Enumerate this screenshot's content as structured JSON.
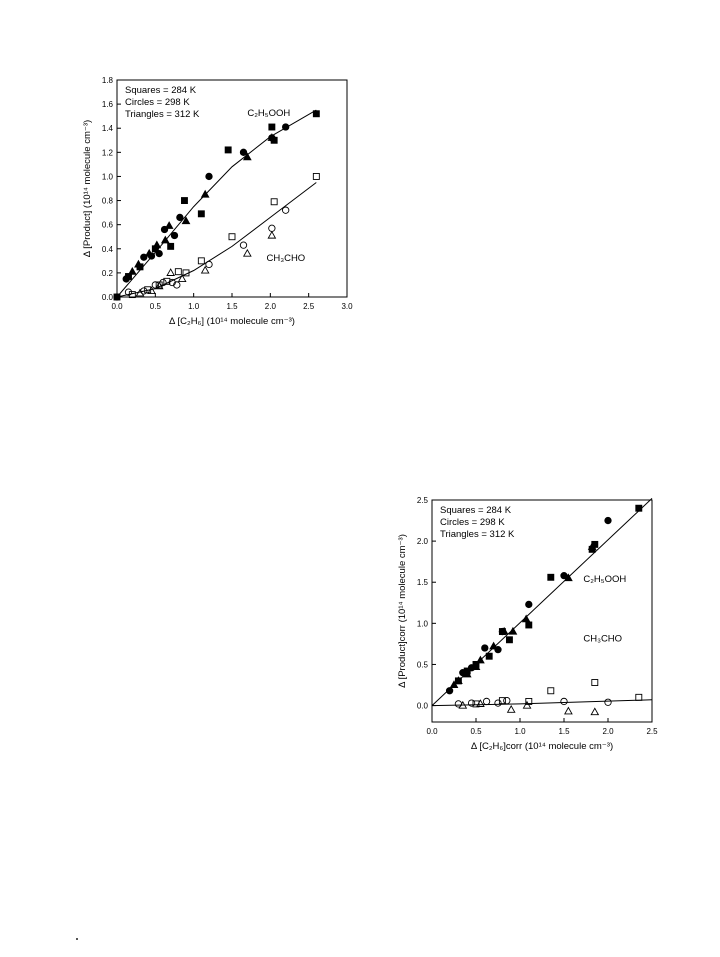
{
  "chart_data": [
    {
      "type": "scatter",
      "title": "",
      "xlabel": "Δ [C₂H₆] (10¹⁴ molecule cm⁻³)",
      "ylabel": "Δ [Product] (10¹⁴ molecule cm⁻³)",
      "xlim": [
        0,
        3.0
      ],
      "ylim": [
        0,
        1.8
      ],
      "x_ticks": [
        "0.0",
        "0.5",
        "1.0",
        "1.5",
        "2.0",
        "2.5",
        "3.0"
      ],
      "y_ticks": [
        "0.0",
        "0.2",
        "0.4",
        "0.6",
        "0.8",
        "1.0",
        "1.2",
        "1.4",
        "1.6",
        "1.8"
      ],
      "legend_lines": [
        "Squares = 284 K",
        "Circles = 298 K",
        "Triangles = 312 K"
      ],
      "legend_position": "top-left",
      "annotations": [
        {
          "text": "C₂H₅OOH",
          "x": 1.7,
          "y": 1.5
        },
        {
          "text": "CH₃CHO",
          "x": 1.95,
          "y": 0.3
        }
      ],
      "series": [
        {
          "marker": "square",
          "fill": "filled",
          "points": [
            [
              0,
              0
            ],
            [
              0.15,
              0.17
            ],
            [
              0.3,
              0.25
            ],
            [
              0.5,
              0.4
            ],
            [
              0.7,
              0.42
            ],
            [
              0.88,
              0.8
            ],
            [
              1.1,
              0.69
            ],
            [
              1.45,
              1.22
            ],
            [
              2.02,
              1.41
            ],
            [
              2.05,
              1.3
            ],
            [
              2.6,
              1.52
            ]
          ]
        },
        {
          "marker": "circle",
          "fill": "filled",
          "points": [
            [
              0,
              0
            ],
            [
              0.12,
              0.15
            ],
            [
              0.35,
              0.33
            ],
            [
              0.45,
              0.34
            ],
            [
              0.55,
              0.36
            ],
            [
              0.62,
              0.56
            ],
            [
              0.75,
              0.51
            ],
            [
              0.82,
              0.66
            ],
            [
              1.2,
              1.0
            ],
            [
              1.65,
              1.2
            ],
            [
              2.02,
              1.32
            ],
            [
              2.2,
              1.41
            ]
          ]
        },
        {
          "marker": "triangle",
          "fill": "filled",
          "points": [
            [
              0.2,
              0.21
            ],
            [
              0.28,
              0.27
            ],
            [
              0.42,
              0.36
            ],
            [
              0.52,
              0.43
            ],
            [
              0.63,
              0.47
            ],
            [
              0.68,
              0.59
            ],
            [
              0.9,
              0.63
            ],
            [
              1.15,
              0.85
            ],
            [
              1.7,
              1.16
            ],
            [
              2.02,
              1.32
            ]
          ]
        },
        {
          "marker": "square",
          "fill": "open",
          "points": [
            [
              0.2,
              0.02
            ],
            [
              0.4,
              0.06
            ],
            [
              0.55,
              0.1
            ],
            [
              0.65,
              0.13
            ],
            [
              0.8,
              0.21
            ],
            [
              0.9,
              0.2
            ],
            [
              1.1,
              0.3
            ],
            [
              1.5,
              0.5
            ],
            [
              2.05,
              0.79
            ],
            [
              2.6,
              1.0
            ]
          ]
        },
        {
          "marker": "circle",
          "fill": "open",
          "points": [
            [
              0.15,
              0.04
            ],
            [
              0.35,
              0.05
            ],
            [
              0.5,
              0.1
            ],
            [
              0.6,
              0.12
            ],
            [
              0.72,
              0.12
            ],
            [
              0.78,
              0.1
            ],
            [
              1.2,
              0.27
            ],
            [
              1.65,
              0.43
            ],
            [
              2.02,
              0.57
            ],
            [
              2.2,
              0.72
            ]
          ]
        },
        {
          "marker": "triangle",
          "fill": "open",
          "points": [
            [
              0.3,
              0.03
            ],
            [
              0.45,
              0.05
            ],
            [
              0.55,
              0.09
            ],
            [
              0.7,
              0.2
            ],
            [
              0.85,
              0.15
            ],
            [
              1.15,
              0.22
            ],
            [
              1.7,
              0.36
            ],
            [
              2.02,
              0.51
            ]
          ]
        }
      ],
      "fits": [
        {
          "label": "C₂H₅OOH",
          "points": [
            [
              0,
              0
            ],
            [
              0.5,
              0.37
            ],
            [
              1.0,
              0.75
            ],
            [
              1.5,
              1.08
            ],
            [
              2.0,
              1.33
            ],
            [
              2.6,
              1.55
            ]
          ]
        },
        {
          "label": "CH₃CHO",
          "points": [
            [
              0,
              0
            ],
            [
              0.5,
              0.07
            ],
            [
              1.0,
              0.22
            ],
            [
              1.5,
              0.42
            ],
            [
              2.0,
              0.66
            ],
            [
              2.6,
              0.95
            ]
          ]
        }
      ]
    },
    {
      "type": "scatter",
      "title": "",
      "xlabel": "Δ [C₂H₆]corr (10¹⁴ molecule cm⁻³)",
      "ylabel": "Δ [Product]corr (10¹⁴ molecule cm⁻³)",
      "xlim": [
        0,
        2.5
      ],
      "ylim": [
        -0.2,
        2.5
      ],
      "x_ticks": [
        "0.0",
        "0.5",
        "1.0",
        "1.5",
        "2.0",
        "2.5"
      ],
      "y_ticks": [
        "0.0",
        "0.5",
        "1.0",
        "1.5",
        "2.0",
        "2.5"
      ],
      "legend_lines": [
        "Squares = 284 K",
        "Circles = 298 K",
        "Triangles = 312 K"
      ],
      "legend_position": "top-left",
      "annotations": [
        {
          "text": "C₂H₅OOH",
          "x": 1.72,
          "y": 1.5
        },
        {
          "text": "CH₃CHO",
          "x": 1.72,
          "y": 0.78
        }
      ],
      "series": [
        {
          "marker": "square",
          "fill": "filled",
          "points": [
            [
              0.3,
              0.3
            ],
            [
              0.4,
              0.42
            ],
            [
              0.5,
              0.5
            ],
            [
              0.65,
              0.6
            ],
            [
              0.8,
              0.9
            ],
            [
              0.88,
              0.8
            ],
            [
              1.1,
              0.98
            ],
            [
              1.35,
              1.56
            ],
            [
              1.82,
              1.9
            ],
            [
              1.85,
              1.96
            ],
            [
              2.35,
              2.4
            ]
          ]
        },
        {
          "marker": "circle",
          "fill": "filled",
          "points": [
            [
              0.2,
              0.18
            ],
            [
              0.35,
              0.4
            ],
            [
              0.45,
              0.46
            ],
            [
              0.6,
              0.7
            ],
            [
              0.75,
              0.68
            ],
            [
              0.8,
              0.9
            ],
            [
              1.1,
              1.23
            ],
            [
              1.5,
              1.58
            ],
            [
              2.0,
              2.25
            ]
          ]
        },
        {
          "marker": "triangle",
          "fill": "filled",
          "points": [
            [
              0.25,
              0.25
            ],
            [
              0.3,
              0.3
            ],
            [
              0.4,
              0.38
            ],
            [
              0.5,
              0.47
            ],
            [
              0.55,
              0.55
            ],
            [
              0.7,
              0.72
            ],
            [
              0.82,
              0.9
            ],
            [
              0.92,
              0.9
            ],
            [
              1.07,
              1.05
            ],
            [
              1.55,
              1.55
            ],
            [
              1.82,
              1.93
            ]
          ]
        },
        {
          "marker": "square",
          "fill": "open",
          "points": [
            [
              0.5,
              0.02
            ],
            [
              0.8,
              0.06
            ],
            [
              1.1,
              0.05
            ],
            [
              1.35,
              0.18
            ],
            [
              1.85,
              0.28
            ],
            [
              2.35,
              0.1
            ]
          ]
        },
        {
          "marker": "circle",
          "fill": "open",
          "points": [
            [
              0.3,
              0.02
            ],
            [
              0.45,
              0.03
            ],
            [
              0.62,
              0.05
            ],
            [
              0.75,
              0.03
            ],
            [
              0.85,
              0.06
            ],
            [
              1.5,
              0.05
            ],
            [
              2.0,
              0.04
            ]
          ]
        },
        {
          "marker": "triangle",
          "fill": "open",
          "points": [
            [
              0.35,
              0.0
            ],
            [
              0.55,
              0.02
            ],
            [
              0.9,
              -0.05
            ],
            [
              1.08,
              0.0
            ],
            [
              1.55,
              -0.07
            ],
            [
              1.85,
              -0.08
            ]
          ]
        }
      ],
      "fits": [
        {
          "label": "C₂H₅OOH",
          "points": [
            [
              0,
              0
            ],
            [
              2.5,
              2.52
            ]
          ]
        },
        {
          "label": "CH₃CHO",
          "points": [
            [
              0,
              0
            ],
            [
              1.0,
              0.02
            ],
            [
              2.5,
              0.07
            ]
          ]
        }
      ]
    }
  ]
}
